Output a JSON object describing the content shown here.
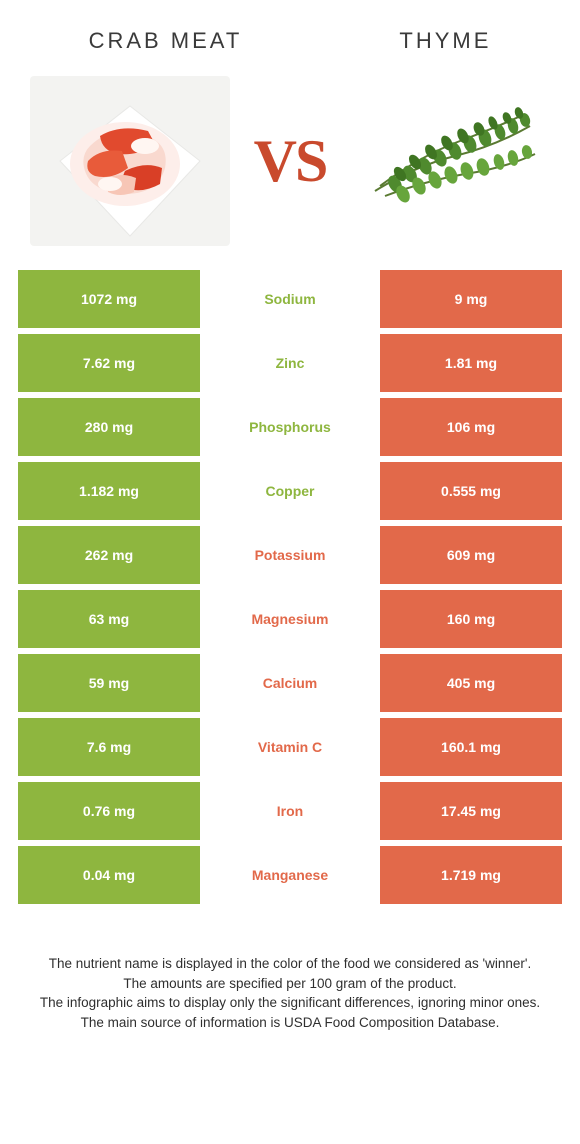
{
  "colors": {
    "green": "#8eb63f",
    "orange": "#e2694a",
    "vs": "#c94a2d",
    "white": "#ffffff"
  },
  "titles": {
    "left": "CRAB MEAT",
    "right": "THYME"
  },
  "vs_label": "VS",
  "rows": [
    {
      "left": "1072 mg",
      "label": "Sodium",
      "right": "9 mg",
      "winner": "left"
    },
    {
      "left": "7.62 mg",
      "label": "Zinc",
      "right": "1.81 mg",
      "winner": "left"
    },
    {
      "left": "280 mg",
      "label": "Phosphorus",
      "right": "106 mg",
      "winner": "left"
    },
    {
      "left": "1.182 mg",
      "label": "Copper",
      "right": "0.555 mg",
      "winner": "left"
    },
    {
      "left": "262 mg",
      "label": "Potassium",
      "right": "609 mg",
      "winner": "right"
    },
    {
      "left": "63 mg",
      "label": "Magnesium",
      "right": "160 mg",
      "winner": "right"
    },
    {
      "left": "59 mg",
      "label": "Calcium",
      "right": "405 mg",
      "winner": "right"
    },
    {
      "left": "7.6 mg",
      "label": "Vitamin C",
      "right": "160.1 mg",
      "winner": "right"
    },
    {
      "left": "0.76 mg",
      "label": "Iron",
      "right": "17.45 mg",
      "winner": "right"
    },
    {
      "left": "0.04 mg",
      "label": "Manganese",
      "right": "1.719 mg",
      "winner": "right"
    }
  ],
  "footer_lines": [
    "The nutrient name is displayed in the color of the food we considered as 'winner'.",
    "The amounts are specified per 100 gram of the product.",
    "The infographic aims to display only the significant differences, ignoring minor ones.",
    "The main source of information is USDA Food Composition Database."
  ]
}
